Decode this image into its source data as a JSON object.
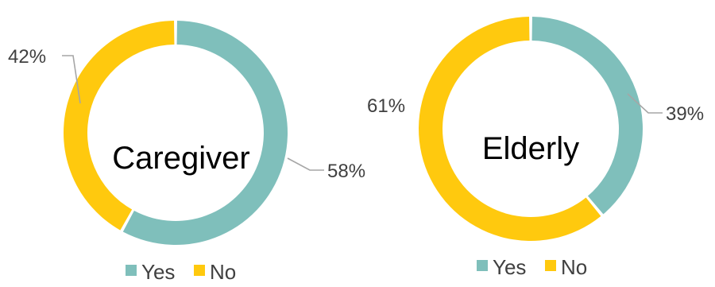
{
  "chart_data": [
    {
      "type": "pie",
      "variant": "donut",
      "title": "Caregiver",
      "categories": [
        "Yes",
        "No"
      ],
      "values": [
        58,
        42
      ],
      "labels": [
        "58%",
        "42%"
      ],
      "legend": {
        "entries": [
          "Yes",
          "No"
        ],
        "placement": "bottom"
      }
    },
    {
      "type": "pie",
      "variant": "donut",
      "title": "Elderly",
      "categories": [
        "Yes",
        "No"
      ],
      "values": [
        39,
        61
      ],
      "labels": [
        "39%",
        "61%"
      ],
      "legend": {
        "entries": [
          "Yes",
          "No"
        ],
        "placement": "bottom"
      }
    }
  ],
  "colors": {
    "Yes": "#7fbfbb",
    "No": "#ffc90e"
  }
}
